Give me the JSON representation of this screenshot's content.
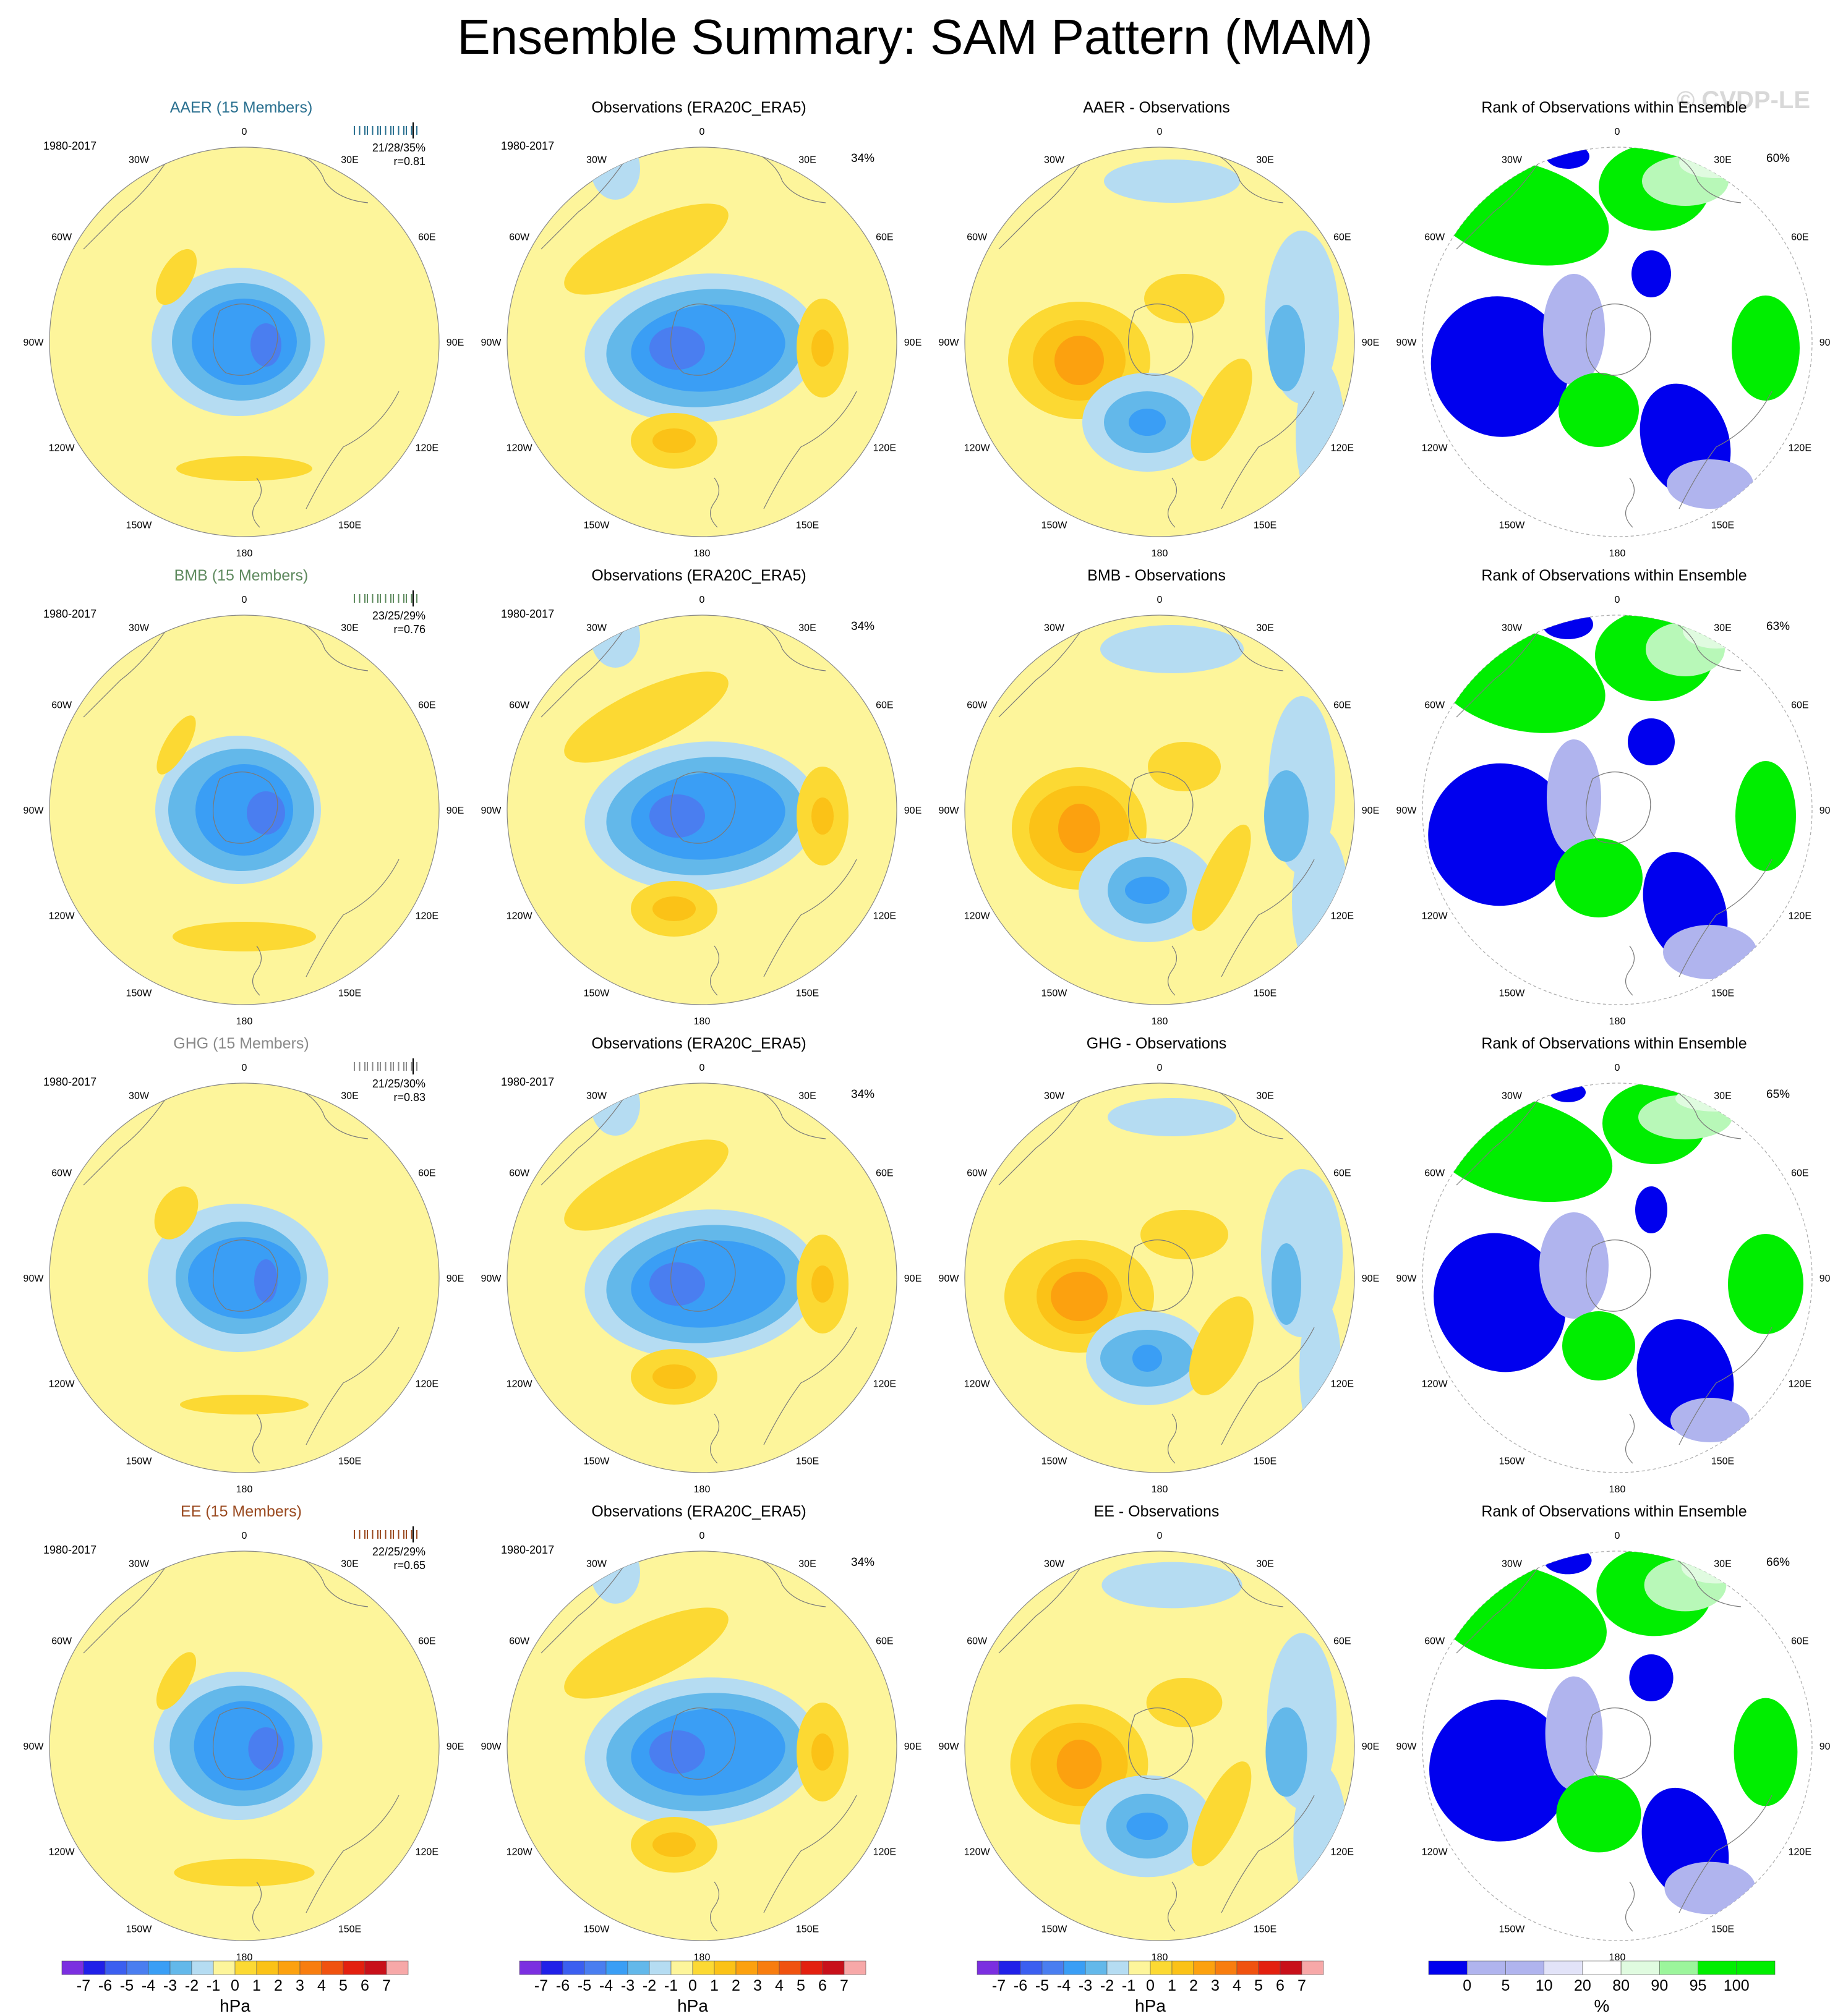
{
  "title": "Ensemble Summary: SAM Pattern (MAM)",
  "watermark": "© CVDP-LE",
  "colors": {
    "neg7": "#7b2fe0",
    "neg6": "#2020e8",
    "neg5": "#3b5ff0",
    "neg4": "#4a7ef0",
    "neg3": "#3a9ef5",
    "neg2": "#63b8ea",
    "neg1": "#b5dcf2",
    "pos0": "#fdf59b",
    "pos1": "#fcd933",
    "pos2": "#fbc217",
    "pos3": "#fca10f",
    "pos4": "#f87d0f",
    "pos5": "#f0520f",
    "pos6": "#e3200f",
    "pos7": "#c8101a",
    "pos8": "#f7a8a8",
    "rank_blue": "#0000ee",
    "rank_lightblue": "#b0b4ee",
    "rank_palblue": "#e2e3f8",
    "rank_palegreen": "#e0fbe0",
    "rank_lightgreen": "#b8f8b8",
    "rank_green": "#00ee00",
    "rank_mint": "#9cf59c",
    "land": "#7a7a7a",
    "aer": "#2a7090",
    "bmb": "#5e8a5e",
    "ghg": "#8a8a8a",
    "ee": "#9a4a20"
  },
  "rows": [
    {
      "model": {
        "title": "AAER (15 Members)",
        "color_key": "aer",
        "period": "1980-2017",
        "stats1": "21/28/35%",
        "stats2": "r=0.81"
      },
      "obs": {
        "title": "Observations (ERA20C_ERA5)",
        "period": "1980-2017",
        "pct": "34%"
      },
      "diff": {
        "title": "AAER - Observations"
      },
      "rank": {
        "title": "Rank of Observations within Ensemble",
        "pct": "60%"
      }
    },
    {
      "model": {
        "title": "BMB (15 Members)",
        "color_key": "bmb",
        "period": "1980-2017",
        "stats1": "23/25/29%",
        "stats2": "r=0.76"
      },
      "obs": {
        "title": "Observations (ERA20C_ERA5)",
        "period": "1980-2017",
        "pct": "34%"
      },
      "diff": {
        "title": "BMB - Observations"
      },
      "rank": {
        "title": "Rank of Observations within Ensemble",
        "pct": "63%"
      }
    },
    {
      "model": {
        "title": "GHG (15 Members)",
        "color_key": "ghg",
        "period": "1980-2017",
        "stats1": "21/25/30%",
        "stats2": "r=0.83"
      },
      "obs": {
        "title": "Observations (ERA20C_ERA5)",
        "period": "1980-2017",
        "pct": "34%"
      },
      "diff": {
        "title": "GHG - Observations"
      },
      "rank": {
        "title": "Rank of Observations within Ensemble",
        "pct": "65%"
      }
    },
    {
      "model": {
        "title": "EE (15 Members)",
        "color_key": "ee",
        "period": "1980-2017",
        "stats1": "22/25/29%",
        "stats2": "r=0.65"
      },
      "obs": {
        "title": "Observations (ERA20C_ERA5)",
        "period": "1980-2017",
        "pct": "34%"
      },
      "diff": {
        "title": "EE - Observations"
      },
      "rank": {
        "title": "Rank of Observations within Ensemble",
        "pct": "66%"
      }
    }
  ],
  "map_labels": {
    "lon": [
      "0",
      "30E",
      "60E",
      "90E",
      "120E",
      "150E",
      "180",
      "150W",
      "120W",
      "90W",
      "60W",
      "30W"
    ]
  },
  "colorbars": {
    "hpa": {
      "unit": "hPa",
      "ticks": [
        "-7",
        "-6",
        "-5",
        "-4",
        "-3",
        "-2",
        "-1",
        "0",
        "1",
        "2",
        "3",
        "4",
        "5",
        "6",
        "7"
      ]
    },
    "rank": {
      "unit": "%",
      "ticks": [
        "0",
        "5",
        "10",
        "20",
        "80",
        "90",
        "95",
        "100"
      ]
    }
  },
  "chart_data": {
    "type": "heatmap",
    "title": "Ensemble Summary: SAM Pattern (MAM)",
    "projection": "south polar stereographic",
    "units": "hPa",
    "contour_levels": [
      -7,
      -6,
      -5,
      -4,
      -3,
      -2,
      -1,
      0,
      1,
      2,
      3,
      4,
      5,
      6,
      7
    ],
    "rank_levels": [
      0,
      5,
      10,
      20,
      80,
      90,
      95,
      100
    ],
    "panels": [
      [
        "AAER (15 Members)",
        "Observations (ERA20C_ERA5)",
        "AAER - Observations",
        "Rank of Observations within Ensemble"
      ],
      [
        "BMB (15 Members)",
        "Observations (ERA20C_ERA5)",
        "BMB - Observations",
        "Rank of Observations within Ensemble"
      ],
      [
        "GHG (15 Members)",
        "Observations (ERA20C_ERA5)",
        "GHG - Observations",
        "Rank of Observations within Ensemble"
      ],
      [
        "EE (15 Members)",
        "Observations (ERA20C_ERA5)",
        "EE - Observations",
        "Rank of Observations within Ensemble"
      ]
    ],
    "pattern_variance_pct": {
      "AAER": "21/28/35%",
      "BMB": "23/25/29%",
      "GHG": "21/25/30%",
      "EE": "22/25/29%",
      "Observations": "34%"
    },
    "pattern_correlation": {
      "AAER": 0.81,
      "BMB": 0.76,
      "GHG": 0.83,
      "EE": 0.65
    },
    "rank_pct_within_range": {
      "AAER": "60%",
      "BMB": "63%",
      "GHG": "65%",
      "EE": "66%"
    }
  }
}
